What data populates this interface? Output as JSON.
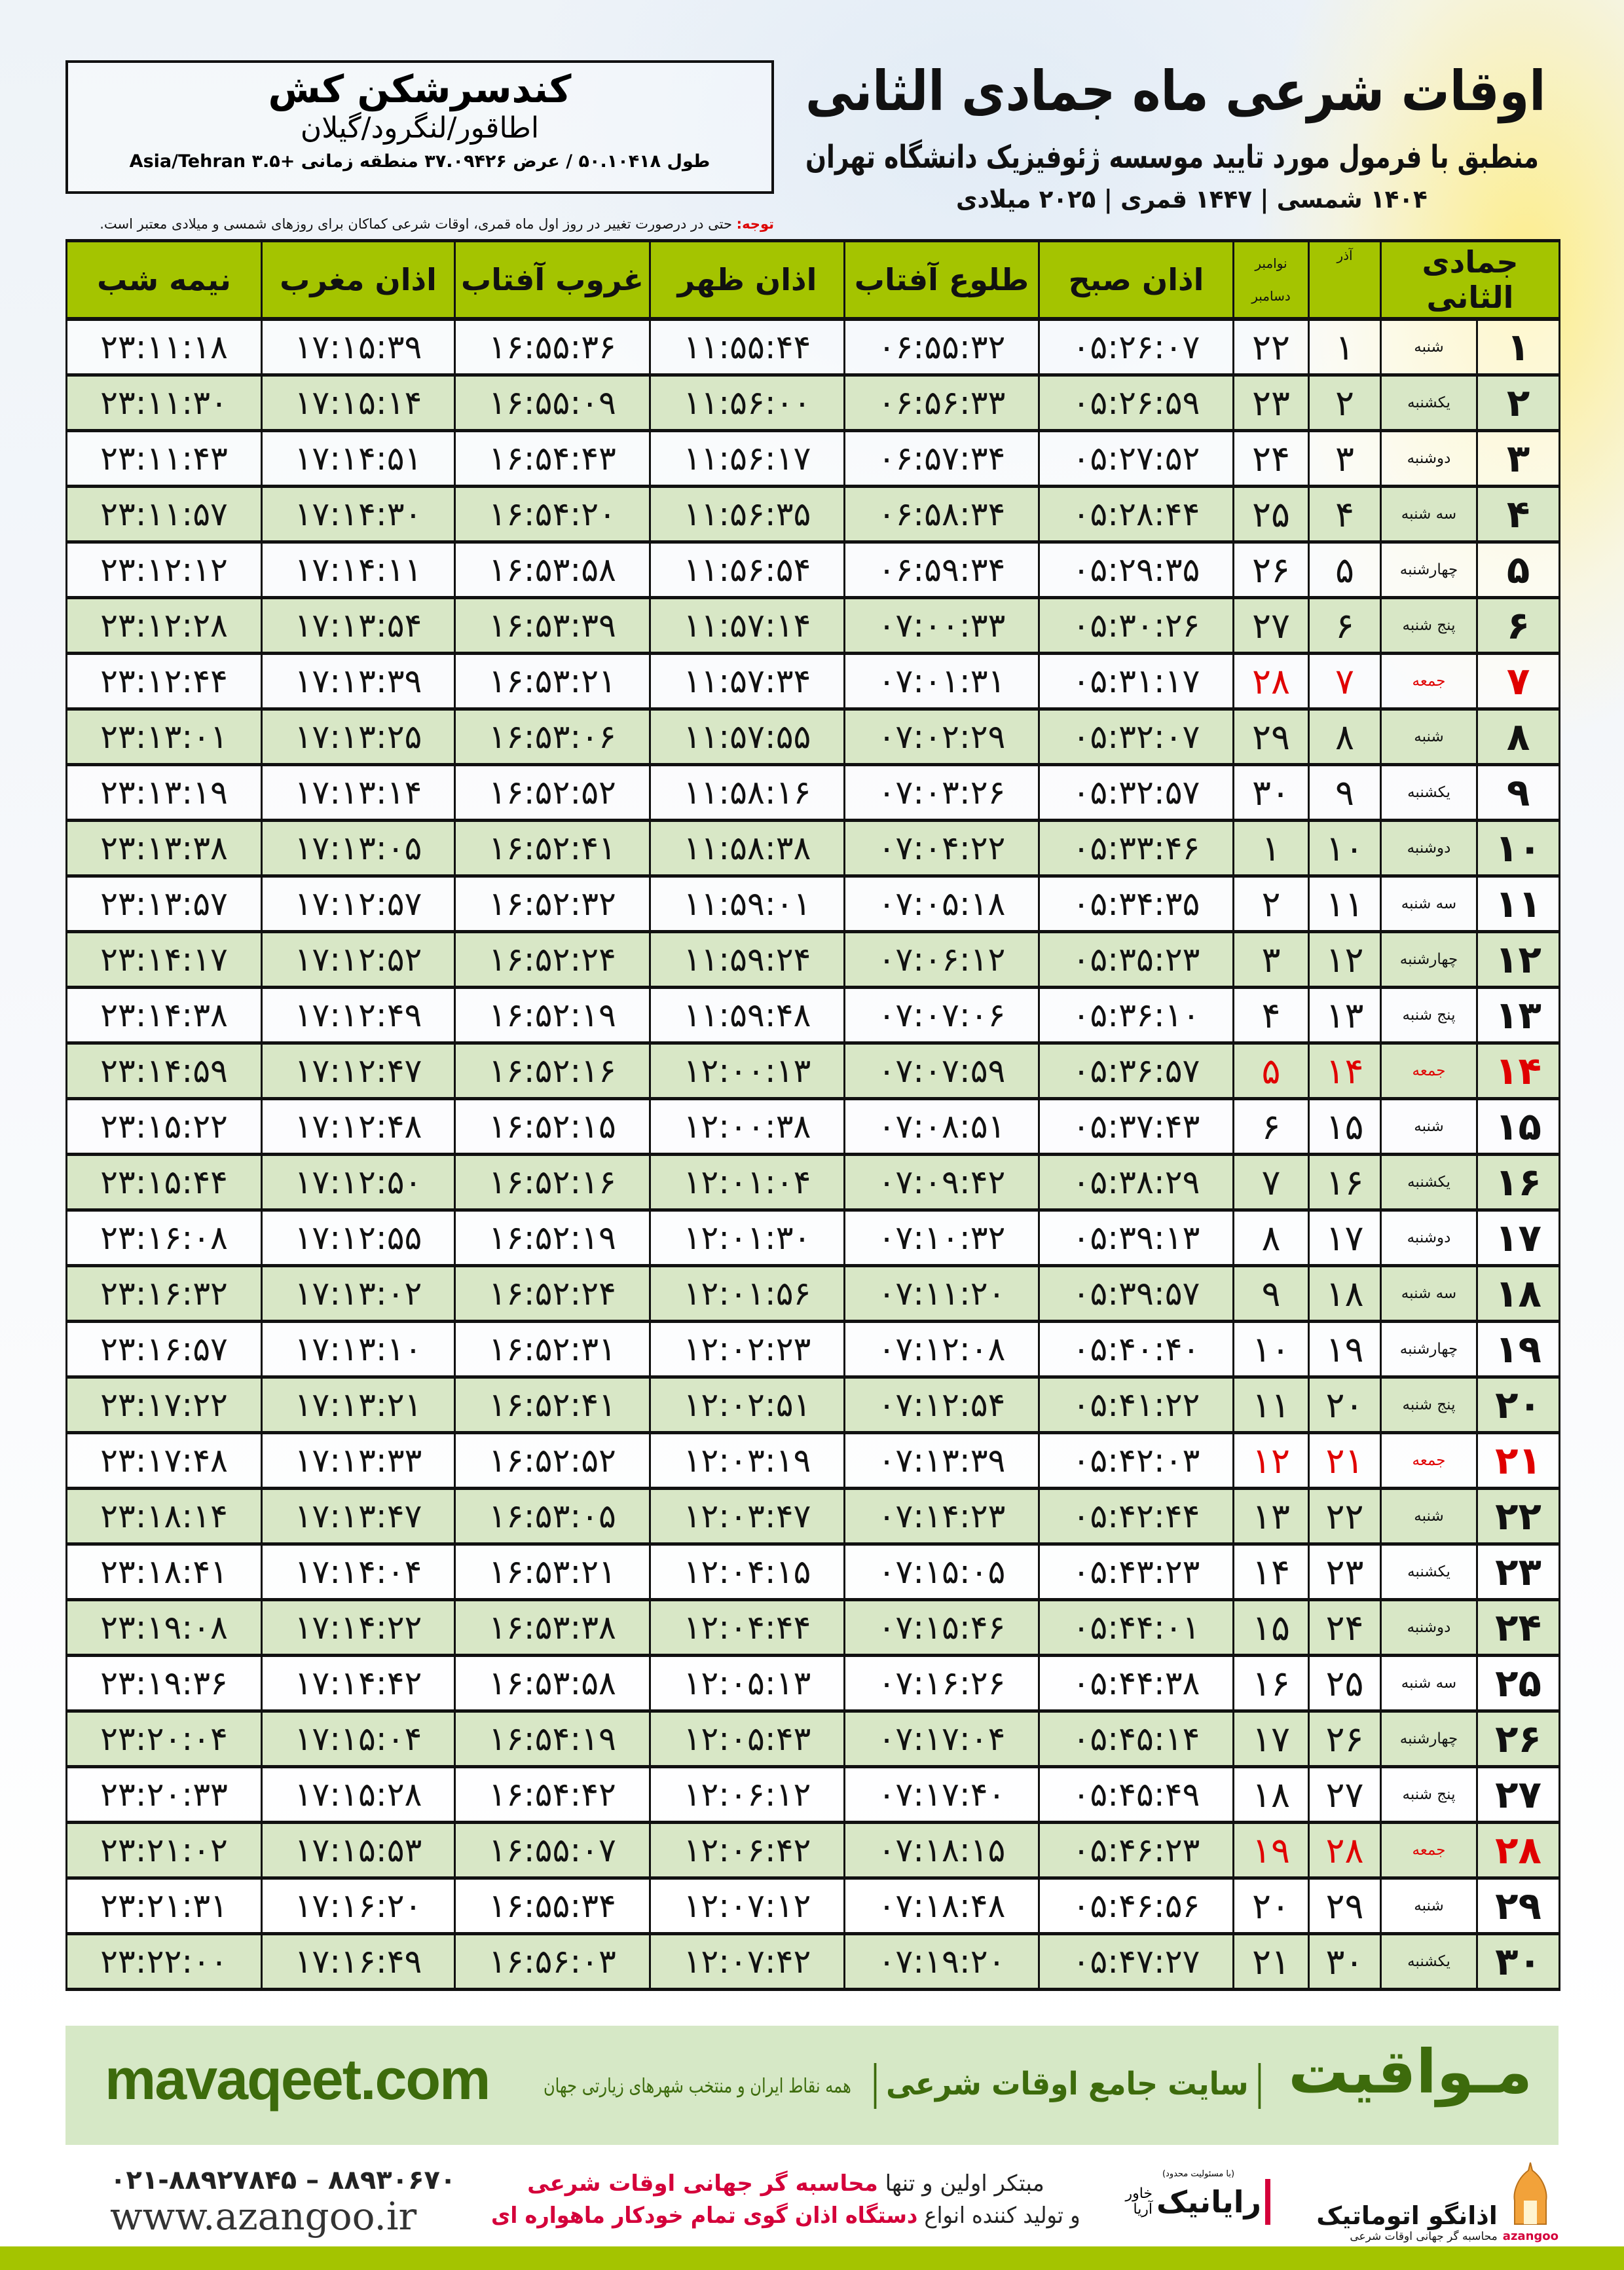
{
  "header": {
    "title": "اوقات شرعی ماه جمادی الثانی",
    "subtitle": "منطبق با فرمول مورد تایید موسسه ژئوفیزیک دانشگاه تهران",
    "dates": "۱۴۰۴ شمسی | ۱۴۴۷ قمری | ۲۰۲۵ میلادی"
  },
  "location": {
    "name": "کندسرشکن کش",
    "path": "اطاقور/لنگرود/گیلان",
    "coords": "طول ۵۰.۱۰۴۱۸ / عرض ۳۷.۰۹۴۲۶ منطقه زمانی +۳.۵ Asia/Tehran"
  },
  "note": {
    "label": "توجه:",
    "text": " حتی در درصورت تغییر در روز اول ماه قمری، اوقات شرعی کماکان برای روزهای شمسی و میلادی معتبر است."
  },
  "colors": {
    "header_green": "#a4c400",
    "row_green": "#d8e7c6",
    "friday_red": "#e00000",
    "brand_green": "#3d6b0c",
    "promo_red": "#d4003a"
  },
  "table": {
    "columns": {
      "month": "جمادی الثانی",
      "azar": "آذر",
      "nov": "نوامبر",
      "dec": "دسامبر",
      "fajr": "اذان صبح",
      "sunrise": "طلوع آفتاب",
      "dhuhr": "اذان ظهر",
      "sunset": "غروب آفتاب",
      "maghrib": "اذان مغرب",
      "midnight": "نیمه شب"
    },
    "rows": [
      [
        "۱",
        "شنبه",
        "۱",
        "۲۲",
        "۰۵:۲۶:۰۷",
        "۰۶:۵۵:۳۲",
        "۱۱:۵۵:۴۴",
        "۱۶:۵۵:۳۶",
        "۱۷:۱۵:۳۹",
        "۲۳:۱۱:۱۸"
      ],
      [
        "۲",
        "یکشنبه",
        "۲",
        "۲۳",
        "۰۵:۲۶:۵۹",
        "۰۶:۵۶:۳۳",
        "۱۱:۵۶:۰۰",
        "۱۶:۵۵:۰۹",
        "۱۷:۱۵:۱۴",
        "۲۳:۱۱:۳۰"
      ],
      [
        "۳",
        "دوشنبه",
        "۳",
        "۲۴",
        "۰۵:۲۷:۵۲",
        "۰۶:۵۷:۳۴",
        "۱۱:۵۶:۱۷",
        "۱۶:۵۴:۴۳",
        "۱۷:۱۴:۵۱",
        "۲۳:۱۱:۴۳"
      ],
      [
        "۴",
        "سه شنبه",
        "۴",
        "۲۵",
        "۰۵:۲۸:۴۴",
        "۰۶:۵۸:۳۴",
        "۱۱:۵۶:۳۵",
        "۱۶:۵۴:۲۰",
        "۱۷:۱۴:۳۰",
        "۲۳:۱۱:۵۷"
      ],
      [
        "۵",
        "چهارشنبه",
        "۵",
        "۲۶",
        "۰۵:۲۹:۳۵",
        "۰۶:۵۹:۳۴",
        "۱۱:۵۶:۵۴",
        "۱۶:۵۳:۵۸",
        "۱۷:۱۴:۱۱",
        "۲۳:۱۲:۱۲"
      ],
      [
        "۶",
        "پنج شنبه",
        "۶",
        "۲۷",
        "۰۵:۳۰:۲۶",
        "۰۷:۰۰:۳۳",
        "۱۱:۵۷:۱۴",
        "۱۶:۵۳:۳۹",
        "۱۷:۱۳:۵۴",
        "۲۳:۱۲:۲۸"
      ],
      [
        "۷",
        "جمعه",
        "۷",
        "۲۸",
        "۰۵:۳۱:۱۷",
        "۰۷:۰۱:۳۱",
        "۱۱:۵۷:۳۴",
        "۱۶:۵۳:۲۱",
        "۱۷:۱۳:۳۹",
        "۲۳:۱۲:۴۴"
      ],
      [
        "۸",
        "شنبه",
        "۸",
        "۲۹",
        "۰۵:۳۲:۰۷",
        "۰۷:۰۲:۲۹",
        "۱۱:۵۷:۵۵",
        "۱۶:۵۳:۰۶",
        "۱۷:۱۳:۲۵",
        "۲۳:۱۳:۰۱"
      ],
      [
        "۹",
        "یکشنبه",
        "۹",
        "۳۰",
        "۰۵:۳۲:۵۷",
        "۰۷:۰۳:۲۶",
        "۱۱:۵۸:۱۶",
        "۱۶:۵۲:۵۲",
        "۱۷:۱۳:۱۴",
        "۲۳:۱۳:۱۹"
      ],
      [
        "۱۰",
        "دوشنبه",
        "۱۰",
        "۱",
        "۰۵:۳۳:۴۶",
        "۰۷:۰۴:۲۲",
        "۱۱:۵۸:۳۸",
        "۱۶:۵۲:۴۱",
        "۱۷:۱۳:۰۵",
        "۲۳:۱۳:۳۸"
      ],
      [
        "۱۱",
        "سه شنبه",
        "۱۱",
        "۲",
        "۰۵:۳۴:۳۵",
        "۰۷:۰۵:۱۸",
        "۱۱:۵۹:۰۱",
        "۱۶:۵۲:۳۲",
        "۱۷:۱۲:۵۷",
        "۲۳:۱۳:۵۷"
      ],
      [
        "۱۲",
        "چهارشنبه",
        "۱۲",
        "۳",
        "۰۵:۳۵:۲۳",
        "۰۷:۰۶:۱۲",
        "۱۱:۵۹:۲۴",
        "۱۶:۵۲:۲۴",
        "۱۷:۱۲:۵۲",
        "۲۳:۱۴:۱۷"
      ],
      [
        "۱۳",
        "پنج شنبه",
        "۱۳",
        "۴",
        "۰۵:۳۶:۱۰",
        "۰۷:۰۷:۰۶",
        "۱۱:۵۹:۴۸",
        "۱۶:۵۲:۱۹",
        "۱۷:۱۲:۴۹",
        "۲۳:۱۴:۳۸"
      ],
      [
        "۱۴",
        "جمعه",
        "۱۴",
        "۵",
        "۰۵:۳۶:۵۷",
        "۰۷:۰۷:۵۹",
        "۱۲:۰۰:۱۳",
        "۱۶:۵۲:۱۶",
        "۱۷:۱۲:۴۷",
        "۲۳:۱۴:۵۹"
      ],
      [
        "۱۵",
        "شنبه",
        "۱۵",
        "۶",
        "۰۵:۳۷:۴۳",
        "۰۷:۰۸:۵۱",
        "۱۲:۰۰:۳۸",
        "۱۶:۵۲:۱۵",
        "۱۷:۱۲:۴۸",
        "۲۳:۱۵:۲۲"
      ],
      [
        "۱۶",
        "یکشنبه",
        "۱۶",
        "۷",
        "۰۵:۳۸:۲۹",
        "۰۷:۰۹:۴۲",
        "۱۲:۰۱:۰۴",
        "۱۶:۵۲:۱۶",
        "۱۷:۱۲:۵۰",
        "۲۳:۱۵:۴۴"
      ],
      [
        "۱۷",
        "دوشنبه",
        "۱۷",
        "۸",
        "۰۵:۳۹:۱۳",
        "۰۷:۱۰:۳۲",
        "۱۲:۰۱:۳۰",
        "۱۶:۵۲:۱۹",
        "۱۷:۱۲:۵۵",
        "۲۳:۱۶:۰۸"
      ],
      [
        "۱۸",
        "سه شنبه",
        "۱۸",
        "۹",
        "۰۵:۳۹:۵۷",
        "۰۷:۱۱:۲۰",
        "۱۲:۰۱:۵۶",
        "۱۶:۵۲:۲۴",
        "۱۷:۱۳:۰۲",
        "۲۳:۱۶:۳۲"
      ],
      [
        "۱۹",
        "چهارشنبه",
        "۱۹",
        "۱۰",
        "۰۵:۴۰:۴۰",
        "۰۷:۱۲:۰۸",
        "۱۲:۰۲:۲۳",
        "۱۶:۵۲:۳۱",
        "۱۷:۱۳:۱۰",
        "۲۳:۱۶:۵۷"
      ],
      [
        "۲۰",
        "پنج شنبه",
        "۲۰",
        "۱۱",
        "۰۵:۴۱:۲۲",
        "۰۷:۱۲:۵۴",
        "۱۲:۰۲:۵۱",
        "۱۶:۵۲:۴۱",
        "۱۷:۱۳:۲۱",
        "۲۳:۱۷:۲۲"
      ],
      [
        "۲۱",
        "جمعه",
        "۲۱",
        "۱۲",
        "۰۵:۴۲:۰۳",
        "۰۷:۱۳:۳۹",
        "۱۲:۰۳:۱۹",
        "۱۶:۵۲:۵۲",
        "۱۷:۱۳:۳۳",
        "۲۳:۱۷:۴۸"
      ],
      [
        "۲۲",
        "شنبه",
        "۲۲",
        "۱۳",
        "۰۵:۴۲:۴۴",
        "۰۷:۱۴:۲۳",
        "۱۲:۰۳:۴۷",
        "۱۶:۵۳:۰۵",
        "۱۷:۱۳:۴۷",
        "۲۳:۱۸:۱۴"
      ],
      [
        "۲۳",
        "یکشنبه",
        "۲۳",
        "۱۴",
        "۰۵:۴۳:۲۳",
        "۰۷:۱۵:۰۵",
        "۱۲:۰۴:۱۵",
        "۱۶:۵۳:۲۱",
        "۱۷:۱۴:۰۴",
        "۲۳:۱۸:۴۱"
      ],
      [
        "۲۴",
        "دوشنبه",
        "۲۴",
        "۱۵",
        "۰۵:۴۴:۰۱",
        "۰۷:۱۵:۴۶",
        "۱۲:۰۴:۴۴",
        "۱۶:۵۳:۳۸",
        "۱۷:۱۴:۲۲",
        "۲۳:۱۹:۰۸"
      ],
      [
        "۲۵",
        "سه شنبه",
        "۲۵",
        "۱۶",
        "۰۵:۴۴:۳۸",
        "۰۷:۱۶:۲۶",
        "۱۲:۰۵:۱۳",
        "۱۶:۵۳:۵۸",
        "۱۷:۱۴:۴۲",
        "۲۳:۱۹:۳۶"
      ],
      [
        "۲۶",
        "چهارشنبه",
        "۲۶",
        "۱۷",
        "۰۵:۴۵:۱۴",
        "۰۷:۱۷:۰۴",
        "۱۲:۰۵:۴۳",
        "۱۶:۵۴:۱۹",
        "۱۷:۱۵:۰۴",
        "۲۳:۲۰:۰۴"
      ],
      [
        "۲۷",
        "پنج شنبه",
        "۲۷",
        "۱۸",
        "۰۵:۴۵:۴۹",
        "۰۷:۱۷:۴۰",
        "۱۲:۰۶:۱۲",
        "۱۶:۵۴:۴۲",
        "۱۷:۱۵:۲۸",
        "۲۳:۲۰:۳۳"
      ],
      [
        "۲۸",
        "جمعه",
        "۲۸",
        "۱۹",
        "۰۵:۴۶:۲۳",
        "۰۷:۱۸:۱۵",
        "۱۲:۰۶:۴۲",
        "۱۶:۵۵:۰۷",
        "۱۷:۱۵:۵۳",
        "۲۳:۲۱:۰۲"
      ],
      [
        "۲۹",
        "شنبه",
        "۲۹",
        "۲۰",
        "۰۵:۴۶:۵۶",
        "۰۷:۱۸:۴۸",
        "۱۲:۰۷:۱۲",
        "۱۶:۵۵:۳۴",
        "۱۷:۱۶:۲۰",
        "۲۳:۲۱:۳۱"
      ],
      [
        "۳۰",
        "یکشنبه",
        "۳۰",
        "۲۱",
        "۰۵:۴۷:۲۷",
        "۰۷:۱۹:۲۰",
        "۱۲:۰۷:۴۲",
        "۱۶:۵۶:۰۳",
        "۱۷:۱۶:۴۹",
        "۲۳:۲۲:۰۰"
      ]
    ]
  },
  "footer": {
    "url": "mavaqeet.com",
    "brand": "مـواقیت",
    "tagline": "سایت جامع اوقات شرعی",
    "sub": "همه نقاط ایران و منتخب شهرهای زیارتی جهان",
    "phone": "۰۲۱-۸۸۹۲۷۸۴۵ – ۸۸۹۳۰۶۷۰",
    "website": "www.azangoo.ir",
    "promo_line1_a": "مبتکر اولین و تنها ",
    "promo_line1_b": "محاسبه گر جهانی اوقات شرعی",
    "promo_line2_a": "و تولید کننده انواع ",
    "promo_line2_b": "دستگاه اذان گوی تمام خودکار ماهواره ای",
    "rayanik_note": "(با مسئولیت محدود)",
    "rayanik_name": "رایانیک",
    "rayanik_sub": "خاور آریا",
    "azangoo_name": "اذانگو اتوماتیک",
    "azangoo_sub": "محاسبه گر جهانی اوقات شرعی",
    "azangoo_latin": "azangoo"
  }
}
